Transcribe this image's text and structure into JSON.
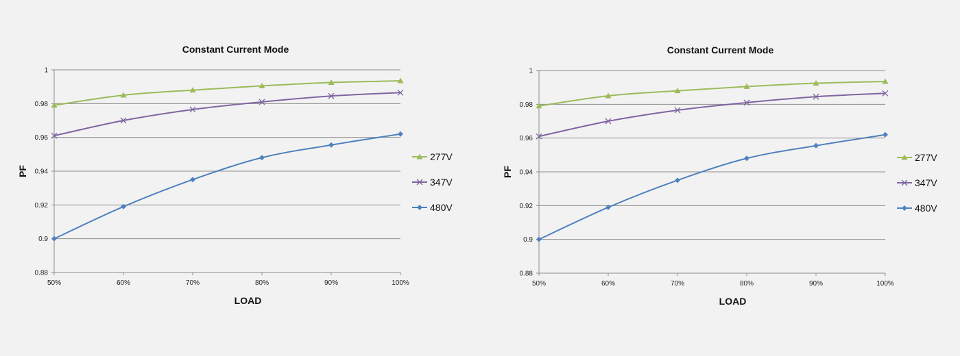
{
  "chart_data": [
    {
      "type": "line",
      "title": "Constant Current Mode",
      "xlabel": "LOAD",
      "ylabel": "PF",
      "categories": [
        "50%",
        "60%",
        "70%",
        "80%",
        "90%",
        "100%"
      ],
      "ylim": [
        0.88,
        1
      ],
      "yticks": [
        0.88,
        0.9,
        0.92,
        0.94,
        0.96,
        0.98,
        1
      ],
      "ytick_labels": [
        "0.88",
        "0.9",
        "0.92",
        "0.94",
        "0.96",
        "0.98",
        "1"
      ],
      "grid": true,
      "legend_position": "right",
      "series": [
        {
          "name": "277V",
          "color": "#9bbb59",
          "marker": "triangle",
          "values": [
            0.979,
            0.985,
            0.988,
            0.9905,
            0.9925,
            0.9935
          ]
        },
        {
          "name": "347V",
          "color": "#8064a2",
          "marker": "x",
          "values": [
            0.961,
            0.97,
            0.9765,
            0.981,
            0.9845,
            0.9865
          ]
        },
        {
          "name": "480V",
          "color": "#4f81bd",
          "marker": "diamond",
          "values": [
            0.9,
            0.919,
            0.935,
            0.948,
            0.9555,
            0.962
          ]
        }
      ]
    },
    {
      "type": "line",
      "title": "Constant Current Mode",
      "xlabel": "LOAD",
      "ylabel": "PF",
      "categories": [
        "50%",
        "60%",
        "70%",
        "80%",
        "90%",
        "100%"
      ],
      "ylim": [
        0.88,
        1
      ],
      "yticks": [
        0.88,
        0.9,
        0.92,
        0.94,
        0.96,
        0.98,
        1
      ],
      "ytick_labels": [
        "0.88",
        "0.9",
        "0.92",
        "0.94",
        "0.96",
        "0.98",
        "1"
      ],
      "grid": true,
      "legend_position": "right",
      "series": [
        {
          "name": "277V",
          "color": "#9bbb59",
          "marker": "triangle",
          "values": [
            0.979,
            0.985,
            0.988,
            0.9905,
            0.9925,
            0.9935
          ]
        },
        {
          "name": "347V",
          "color": "#8064a2",
          "marker": "x",
          "values": [
            0.961,
            0.97,
            0.9765,
            0.981,
            0.9845,
            0.9865
          ]
        },
        {
          "name": "480V",
          "color": "#4f81bd",
          "marker": "diamond",
          "values": [
            0.9,
            0.919,
            0.935,
            0.948,
            0.9555,
            0.962
          ]
        }
      ]
    }
  ]
}
